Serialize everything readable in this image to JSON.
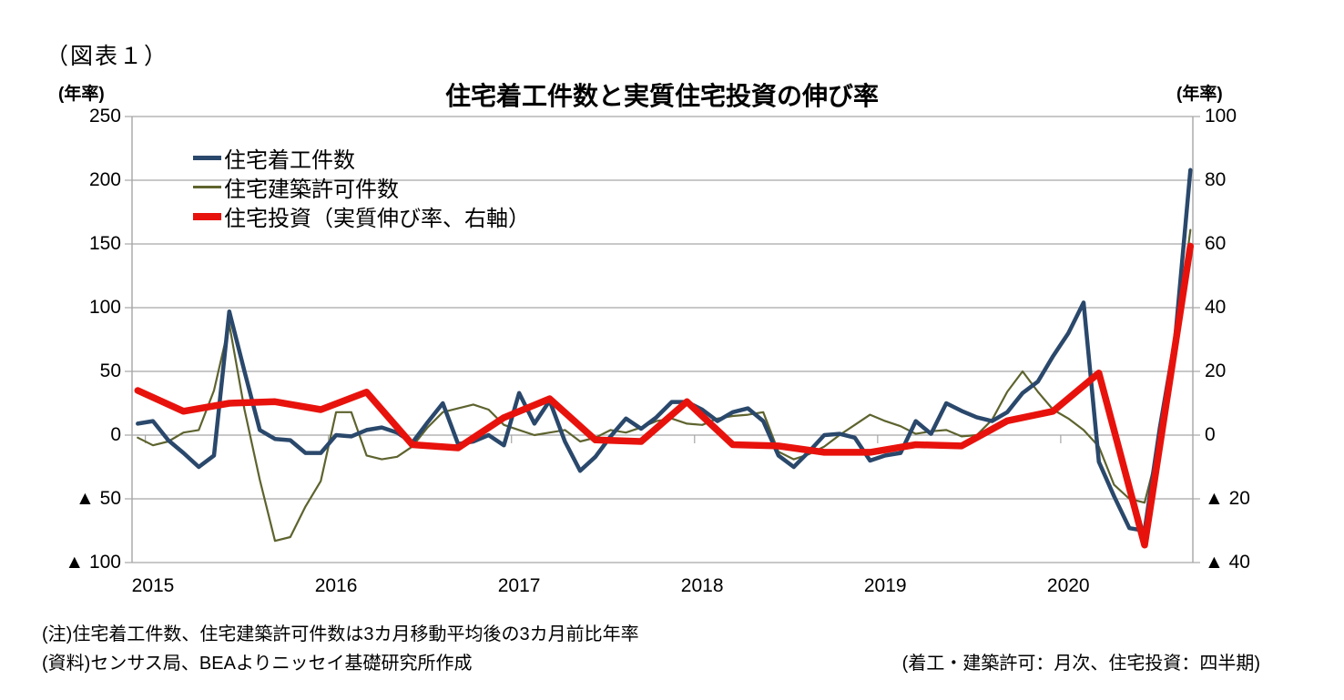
{
  "figure_label": "（図表１）",
  "title": "住宅着工件数と実質住宅投資の伸び率",
  "left_axis_unit": "(年率)",
  "right_axis_unit": "(年率)",
  "left_ticks": [
    "250",
    "200",
    "150",
    "100",
    "50",
    "0",
    "▲ 50",
    "▲ 100"
  ],
  "right_ticks": [
    "100",
    "80",
    "60",
    "40",
    "20",
    "0",
    "▲ 20",
    "▲ 40"
  ],
  "x_ticks": [
    "2015",
    "2016",
    "2017",
    "2018",
    "2019",
    "2020"
  ],
  "notes": {
    "line1": "(注)住宅着工件数、住宅建築許可件数は3カ月移動平均後の3カ月前比年率",
    "line2": "(資料)センサス局、BEAよりニッセイ基礎研究所作成",
    "right": "(着工・建築許可：月次、住宅投資：四半期)"
  },
  "chart_data": {
    "type": "line",
    "title": "住宅着工件数と実質住宅投資の伸び率",
    "x_start_month": "2014-12",
    "x_end_month": "2020-09",
    "x_tick_years": [
      "2015",
      "2016",
      "2017",
      "2018",
      "2019",
      "2020"
    ],
    "left_axis": {
      "label": "(年率)",
      "range": [
        -100,
        250
      ],
      "tick_interval": 50
    },
    "right_axis": {
      "label": "(年率)",
      "range": [
        -40,
        100
      ],
      "tick_interval": 20
    },
    "grid": "horizontal",
    "legend_position": "top-left-inside",
    "negative_tick_prefix": "▲",
    "series": [
      {
        "name": "住宅着工件数",
        "axis": "left",
        "frequency": "monthly",
        "color": "#2a486b",
        "values": [
          9,
          11,
          -4,
          -14,
          -25,
          -16,
          97,
          50,
          4,
          -3,
          -4,
          -14,
          -14,
          0,
          -1,
          4,
          6,
          2,
          -6,
          10,
          25,
          -7,
          -5,
          0,
          -8,
          33,
          9,
          27,
          -5,
          -28,
          -17,
          -1,
          13,
          5,
          14,
          26,
          26,
          20,
          11,
          18,
          21,
          11,
          -16,
          -25,
          -13,
          0,
          1,
          -2,
          -20,
          -16,
          -14,
          11,
          1,
          25,
          19,
          14,
          11,
          18,
          33,
          42,
          62,
          80,
          104,
          -21,
          -48,
          -73,
          -75,
          6,
          75,
          208
        ]
      },
      {
        "name": "住宅建築許可件数",
        "axis": "left",
        "frequency": "monthly",
        "color": "#5e632e",
        "values": [
          -2,
          -8,
          -5,
          2,
          4,
          35,
          87,
          20,
          -35,
          -83,
          -80,
          -56,
          -36,
          18,
          18,
          -16,
          -19,
          -17,
          -9,
          6,
          18,
          21,
          24,
          20,
          8,
          4,
          0,
          2,
          4,
          -5,
          -2,
          4,
          2,
          6,
          11,
          13,
          9,
          8,
          13,
          15,
          16,
          18,
          -13,
          -19,
          -15,
          -9,
          0,
          8,
          16,
          11,
          7,
          1,
          3,
          4,
          -1,
          0,
          12,
          34,
          50,
          34,
          20,
          13,
          4,
          -9,
          -39,
          -50,
          -53,
          -6,
          68,
          161
        ]
      },
      {
        "name": "住宅投資（実質伸び率、右軸）",
        "axis": "right",
        "frequency": "quarterly",
        "x_start_quarter": "2014Q4",
        "x_end_quarter": "2020Q3",
        "color": "#e8120c",
        "values": [
          14,
          7.5,
          10,
          10.5,
          8,
          13.5,
          -3,
          -4,
          5.5,
          11.4,
          -1.5,
          -2,
          10.5,
          -3,
          -3.4,
          -5.4,
          -5.4,
          -3,
          -3.4,
          4.5,
          7.5,
          19.5,
          -34.5,
          59.3
        ]
      }
    ]
  }
}
